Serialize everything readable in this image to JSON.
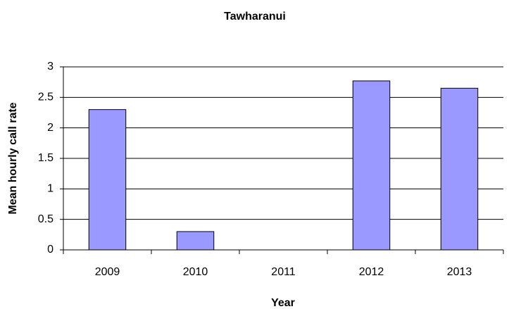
{
  "chart_data": {
    "type": "bar",
    "title": "Tawharanui",
    "x_label": "Year",
    "y_label": "Mean hourly call rate",
    "categories": [
      "2009",
      "2010",
      "2011",
      "2012",
      "2013"
    ],
    "values": [
      2.3,
      0.3,
      0,
      2.77,
      2.65
    ],
    "color": "#9999ff",
    "ylim": [
      0,
      3
    ],
    "yticks": [
      0,
      0.5,
      1,
      1.5,
      2,
      2.5,
      3
    ],
    "grid": true
  }
}
